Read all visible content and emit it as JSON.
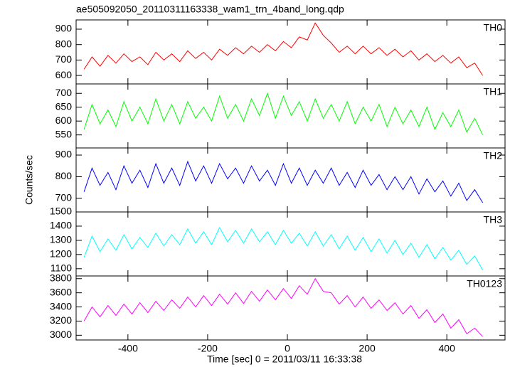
{
  "chart_data": {
    "type": "line",
    "title": "ae505092050_20110311163338_wam1_trn_4band_long.qdp",
    "xlabel": "Time [sec] 0 = 2011/03/11 16:33:38",
    "ylabel": "Counts/sec",
    "xlim": [
      -530,
      546
    ],
    "xticks": [
      -400,
      -200,
      0,
      200,
      400
    ],
    "x": [
      -510,
      -490,
      -470,
      -450,
      -430,
      -410,
      -390,
      -370,
      -350,
      -330,
      -310,
      -290,
      -270,
      -250,
      -230,
      -210,
      -190,
      -170,
      -150,
      -130,
      -110,
      -90,
      -70,
      -50,
      -30,
      -10,
      10,
      30,
      50,
      70,
      90,
      110,
      130,
      150,
      170,
      190,
      210,
      230,
      250,
      270,
      290,
      310,
      330,
      350,
      370,
      390,
      410,
      430,
      450,
      470,
      490
    ],
    "series": [
      {
        "name": "TH0",
        "color": "#ff0000",
        "ylim": [
          545,
          960
        ],
        "yticks": [
          600,
          700,
          800,
          900
        ],
        "values": [
          640,
          720,
          660,
          730,
          680,
          740,
          690,
          720,
          670,
          750,
          700,
          740,
          690,
          760,
          710,
          750,
          700,
          770,
          730,
          780,
          740,
          790,
          750,
          800,
          760,
          820,
          780,
          850,
          830,
          940,
          860,
          810,
          750,
          790,
          740,
          790,
          740,
          780,
          730,
          770,
          720,
          760,
          700,
          740,
          690,
          730,
          680,
          720,
          650,
          680,
          600
        ]
      },
      {
        "name": "TH1",
        "color": "#00ff00",
        "ylim": [
          503,
          734
        ],
        "yticks": [
          550,
          600,
          650,
          700
        ],
        "values": [
          570,
          660,
          590,
          640,
          580,
          670,
          600,
          650,
          590,
          680,
          600,
          660,
          590,
          670,
          610,
          650,
          600,
          690,
          610,
          660,
          600,
          680,
          620,
          700,
          610,
          690,
          620,
          670,
          600,
          680,
          610,
          660,
          600,
          670,
          590,
          650,
          600,
          660,
          580,
          650,
          590,
          640,
          580,
          650,
          570,
          630,
          580,
          640,
          560,
          610,
          550
        ]
      },
      {
        "name": "TH2",
        "color": "#0000ff",
        "ylim": [
          637,
          933
        ],
        "yticks": [
          700,
          800,
          900
        ],
        "values": [
          730,
          840,
          760,
          820,
          740,
          850,
          770,
          830,
          750,
          860,
          770,
          840,
          760,
          870,
          780,
          850,
          770,
          860,
          790,
          840,
          770,
          850,
          780,
          830,
          760,
          860,
          770,
          840,
          760,
          830,
          770,
          840,
          760,
          820,
          750,
          830,
          760,
          810,
          740,
          800,
          740,
          800,
          720,
          790,
          730,
          780,
          710,
          770,
          690,
          740,
          680
        ]
      },
      {
        "name": "TH3",
        "color": "#00ffff",
        "ylim": [
          1049,
          1500
        ],
        "yticks": [
          1100,
          1200,
          1300,
          1400,
          1500
        ],
        "values": [
          1180,
          1330,
          1220,
          1310,
          1230,
          1340,
          1240,
          1320,
          1250,
          1350,
          1260,
          1340,
          1270,
          1380,
          1280,
          1360,
          1270,
          1390,
          1290,
          1370,
          1280,
          1380,
          1290,
          1360,
          1270,
          1370,
          1280,
          1350,
          1260,
          1360,
          1260,
          1340,
          1240,
          1330,
          1230,
          1320,
          1220,
          1310,
          1210,
          1300,
          1200,
          1280,
          1180,
          1270,
          1170,
          1250,
          1160,
          1230,
          1130,
          1190,
          1090
        ]
      },
      {
        "name": "TH0123",
        "color": "#ff00ff",
        "ylim": [
          2933,
          3838
        ],
        "yticks": [
          3000,
          3200,
          3400,
          3600,
          3800
        ],
        "values": [
          3200,
          3400,
          3260,
          3420,
          3280,
          3440,
          3300,
          3460,
          3320,
          3480,
          3350,
          3500,
          3380,
          3540,
          3400,
          3560,
          3420,
          3580,
          3440,
          3600,
          3450,
          3620,
          3480,
          3640,
          3500,
          3660,
          3520,
          3700,
          3580,
          3800,
          3620,
          3600,
          3440,
          3560,
          3400,
          3540,
          3380,
          3500,
          3350,
          3460,
          3300,
          3420,
          3240,
          3360,
          3180,
          3300,
          3100,
          3220,
          3020,
          3100,
          2980
        ]
      }
    ]
  }
}
